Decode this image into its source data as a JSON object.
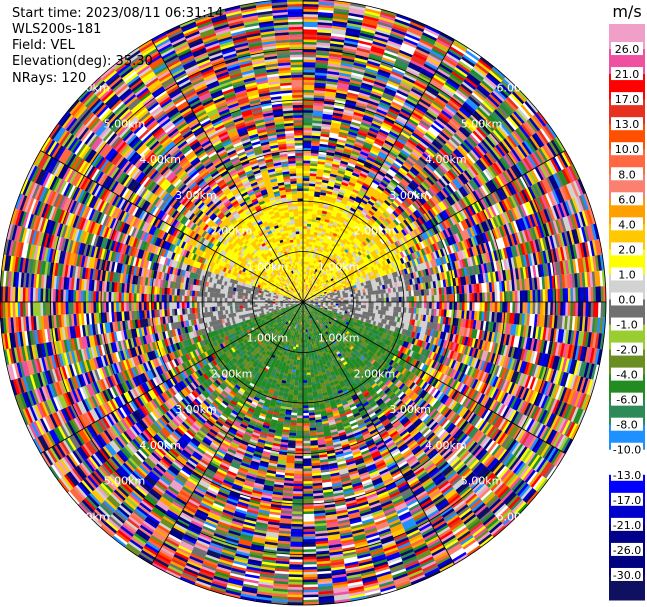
{
  "header": {
    "start_time": "Start time: 2023/08/11 06:31:14",
    "instrument": "WLS200s-181",
    "field": "Field: VEL",
    "elevation": "Elevation(deg): 35.30",
    "nrays": "NRays: 120"
  },
  "chart_data": {
    "type": "heatmap",
    "projection": "polar PPI",
    "field": "VEL",
    "units": "m/s",
    "nrays": 120,
    "range_rings_km": [
      1.0,
      2.0,
      3.0,
      4.0,
      5.0,
      6.0
    ],
    "ring_labels": [
      "1.00km",
      "2.00km",
      "3.00km",
      "4.00km",
      "5.00km",
      "6.00km"
    ],
    "clean_region_km": 2.1,
    "near_field_pattern": [
      {
        "sector": "north",
        "velocity_range": [
          0.5,
          3.0
        ]
      },
      {
        "sector": "horizontal band",
        "velocity_range": [
          -1.0,
          1.0
        ]
      },
      {
        "sector": "south",
        "velocity_range": [
          -8.0,
          -3.0
        ]
      }
    ],
    "far_field": "noise (random velocities)",
    "colorbar": {
      "units": "m/s",
      "ticks": [
        "26.0",
        "21.0",
        "17.0",
        "13.0",
        "10.0",
        "8.0",
        "6.0",
        "4.0",
        "2.0",
        "1.0",
        "0.0",
        "-1.0",
        "-2.0",
        "-4.0",
        "-6.0",
        "-8.0",
        "-10.0",
        "-13.0",
        "-17.0",
        "-21.0",
        "-26.0",
        "-30.0"
      ],
      "colors": [
        "#f0a0c8",
        "#f050a0",
        "#ff0000",
        "#e83020",
        "#ff5000",
        "#ff6840",
        "#fa8070",
        "#ffa000",
        "#ffc800",
        "#ffff00",
        "#d2d2d2",
        "#707070",
        "#9acd32",
        "#6b8e23",
        "#228b22",
        "#2e8b57",
        "#1e90ff",
        "#ffffff",
        "#0000ff",
        "#0000cd",
        "#00008b",
        "#000080",
        "#101060"
      ]
    }
  }
}
